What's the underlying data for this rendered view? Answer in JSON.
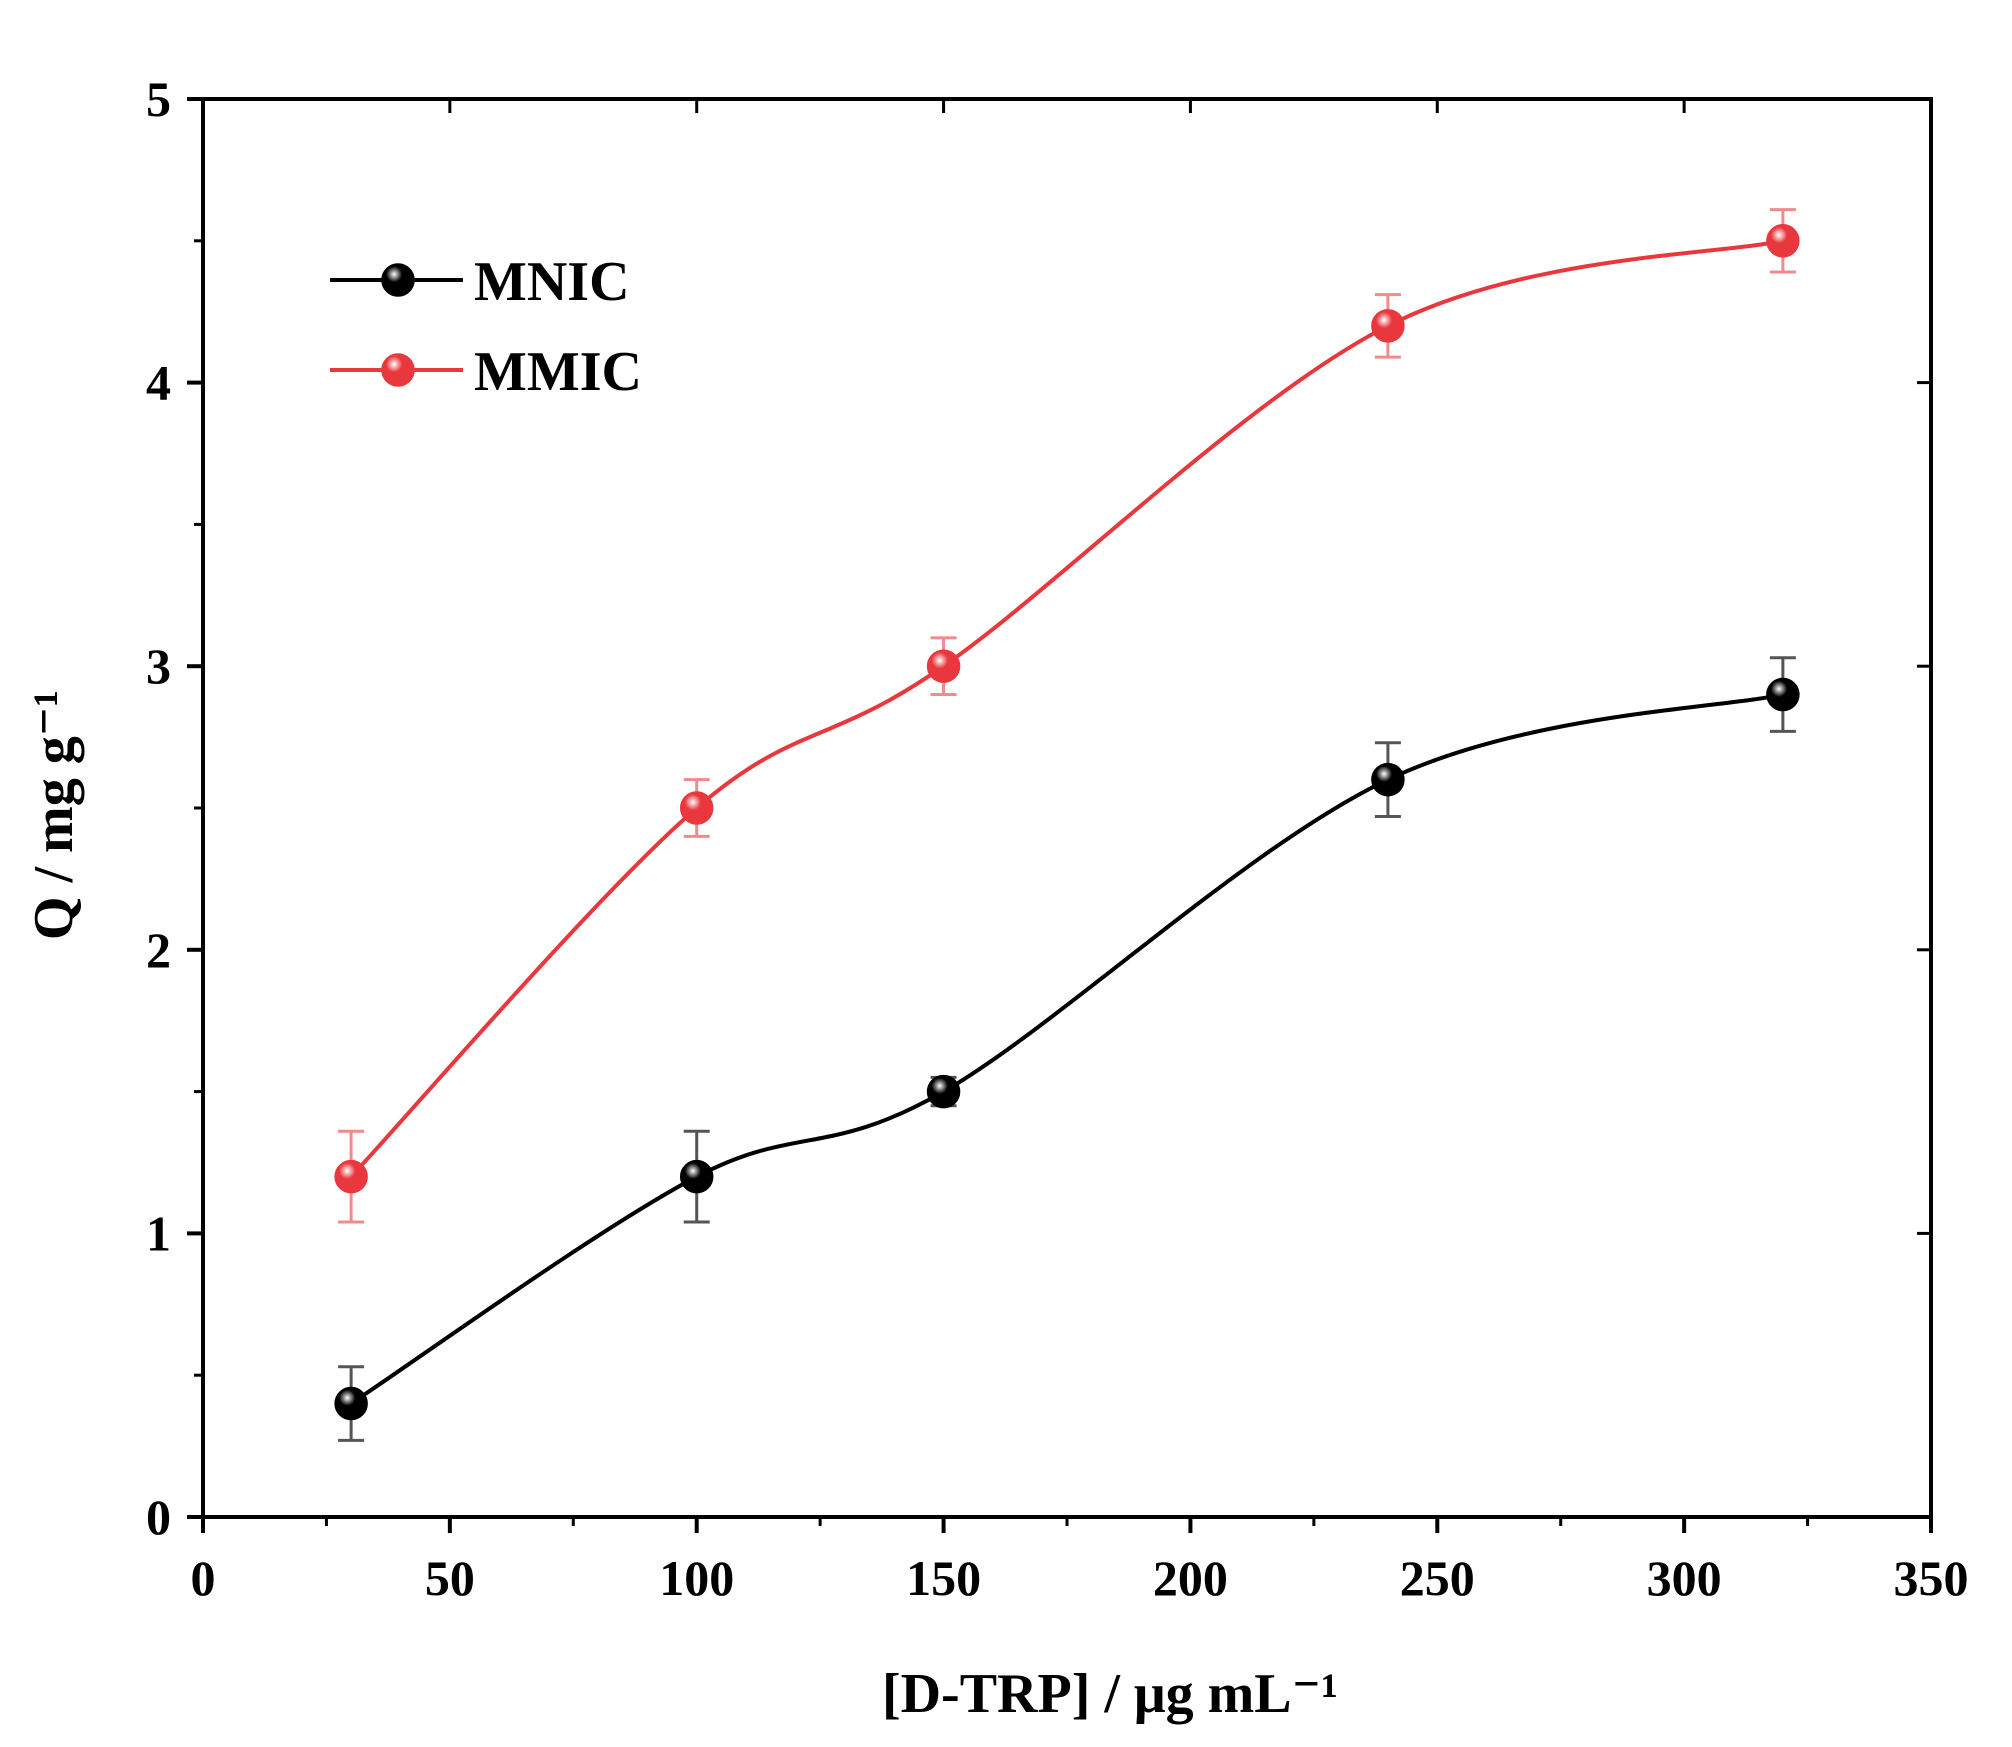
{
  "chart_data": {
    "type": "scatter",
    "xlabel": "[D-TRP] / μg mL⁻¹",
    "ylabel": "Q / mg g⁻¹",
    "xlim": [
      0,
      350
    ],
    "ylim": [
      0,
      5
    ],
    "x_ticks": [
      0,
      50,
      100,
      150,
      200,
      250,
      300,
      350
    ],
    "y_ticks": [
      0,
      1,
      2,
      3,
      4,
      5
    ],
    "x_tick_labels": [
      "0",
      "50",
      "100",
      "150",
      "200",
      "250",
      "300",
      "350"
    ],
    "y_tick_labels": [
      "0",
      "1",
      "2",
      "3",
      "4",
      "5"
    ],
    "grid": false,
    "legend_position": "top-left",
    "series": [
      {
        "name": "MNIC",
        "color": "#000000",
        "x": [
          30,
          100,
          150,
          240,
          320
        ],
        "y": [
          0.4,
          1.2,
          1.5,
          2.6,
          2.9
        ],
        "error": [
          0.13,
          0.16,
          0.05,
          0.13,
          0.13
        ]
      },
      {
        "name": "MMIC",
        "color": "#e8383d",
        "x": [
          30,
          100,
          150,
          240,
          320
        ],
        "y": [
          1.2,
          2.5,
          3.0,
          4.2,
          4.5
        ],
        "error": [
          0.16,
          0.1,
          0.1,
          0.11,
          0.11
        ]
      }
    ]
  }
}
